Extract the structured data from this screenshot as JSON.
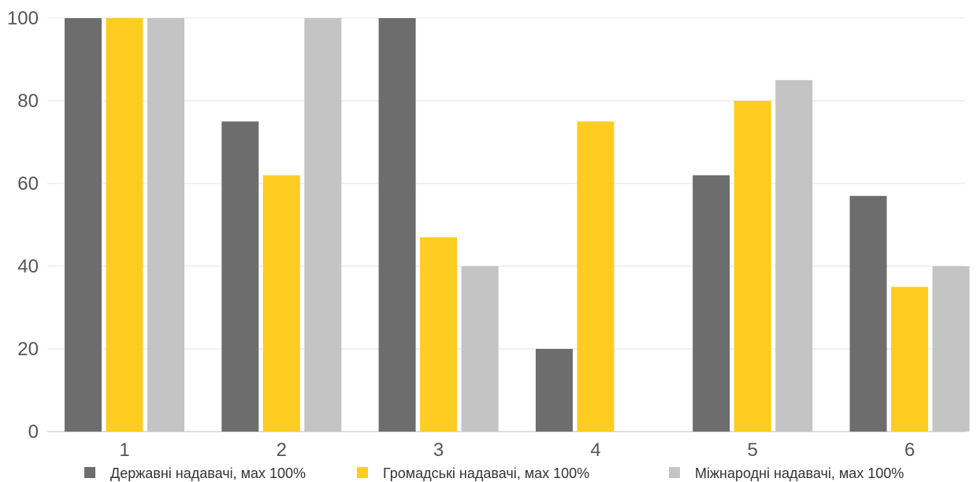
{
  "chart_data": {
    "type": "bar",
    "categories": [
      "1",
      "2",
      "3",
      "4",
      "5",
      "6"
    ],
    "series": [
      {
        "name": "Державні надавачі, мах 100%",
        "color": "#6d6d6d",
        "values": [
          100,
          75,
          100,
          20,
          62,
          57
        ]
      },
      {
        "name": "Громадські надавачі, мах 100%",
        "color": "#ffcc22",
        "values": [
          100,
          62,
          47,
          75,
          80,
          35
        ]
      },
      {
        "name": "Міжнародні надавачі, мах 100%",
        "color": "#c4c4c4",
        "values": [
          100,
          100,
          40,
          0,
          85,
          40
        ]
      }
    ],
    "y_ticks": [
      "0",
      "20",
      "40",
      "60",
      "80",
      "100"
    ],
    "ylim": [
      0,
      100
    ],
    "grid": true,
    "legend_position": "bottom"
  }
}
